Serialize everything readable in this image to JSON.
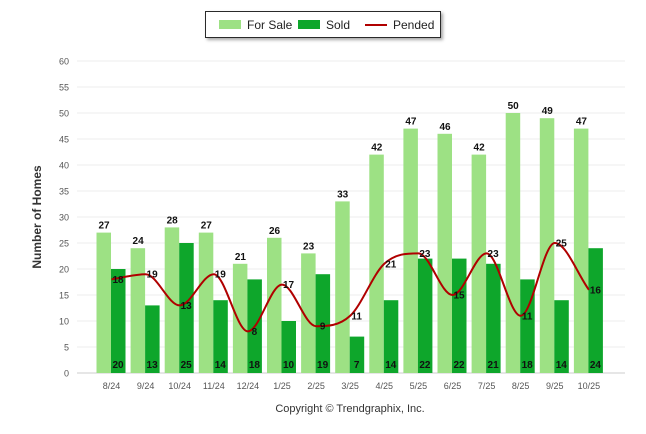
{
  "colors": {
    "for_sale": "#9de184",
    "sold": "#0ea62b",
    "pended": "#b00000",
    "grid": "#eeeeee",
    "axis_text": "#555555"
  },
  "copyright": "Copyright © Trendgraphix, Inc.",
  "chart_data": {
    "type": "bar",
    "ylabel": "Number of Homes",
    "xlabel": "",
    "ylim": [
      0,
      60
    ],
    "yticks": [
      0,
      5,
      10,
      15,
      20,
      25,
      30,
      35,
      40,
      45,
      50,
      55,
      60
    ],
    "grid": true,
    "legend_position": "top-center",
    "categories": [
      "8/24",
      "9/24",
      "10/24",
      "11/24",
      "12/24",
      "1/25",
      "2/25",
      "3/25",
      "4/25",
      "5/25",
      "6/25",
      "7/25",
      "8/25",
      "9/25",
      "10/25"
    ],
    "series": [
      {
        "name": "For Sale",
        "type": "bar",
        "values": [
          27,
          24,
          28,
          27,
          21,
          26,
          23,
          33,
          42,
          47,
          46,
          42,
          50,
          49,
          47
        ]
      },
      {
        "name": "Sold",
        "type": "bar",
        "values": [
          20,
          13,
          25,
          14,
          18,
          10,
          19,
          7,
          14,
          22,
          22,
          21,
          18,
          14,
          24
        ]
      },
      {
        "name": "Pended",
        "type": "line",
        "values": [
          18,
          19,
          13,
          19,
          8,
          17,
          9,
          11,
          21,
          23,
          15,
          23,
          11,
          25,
          16
        ]
      }
    ]
  }
}
